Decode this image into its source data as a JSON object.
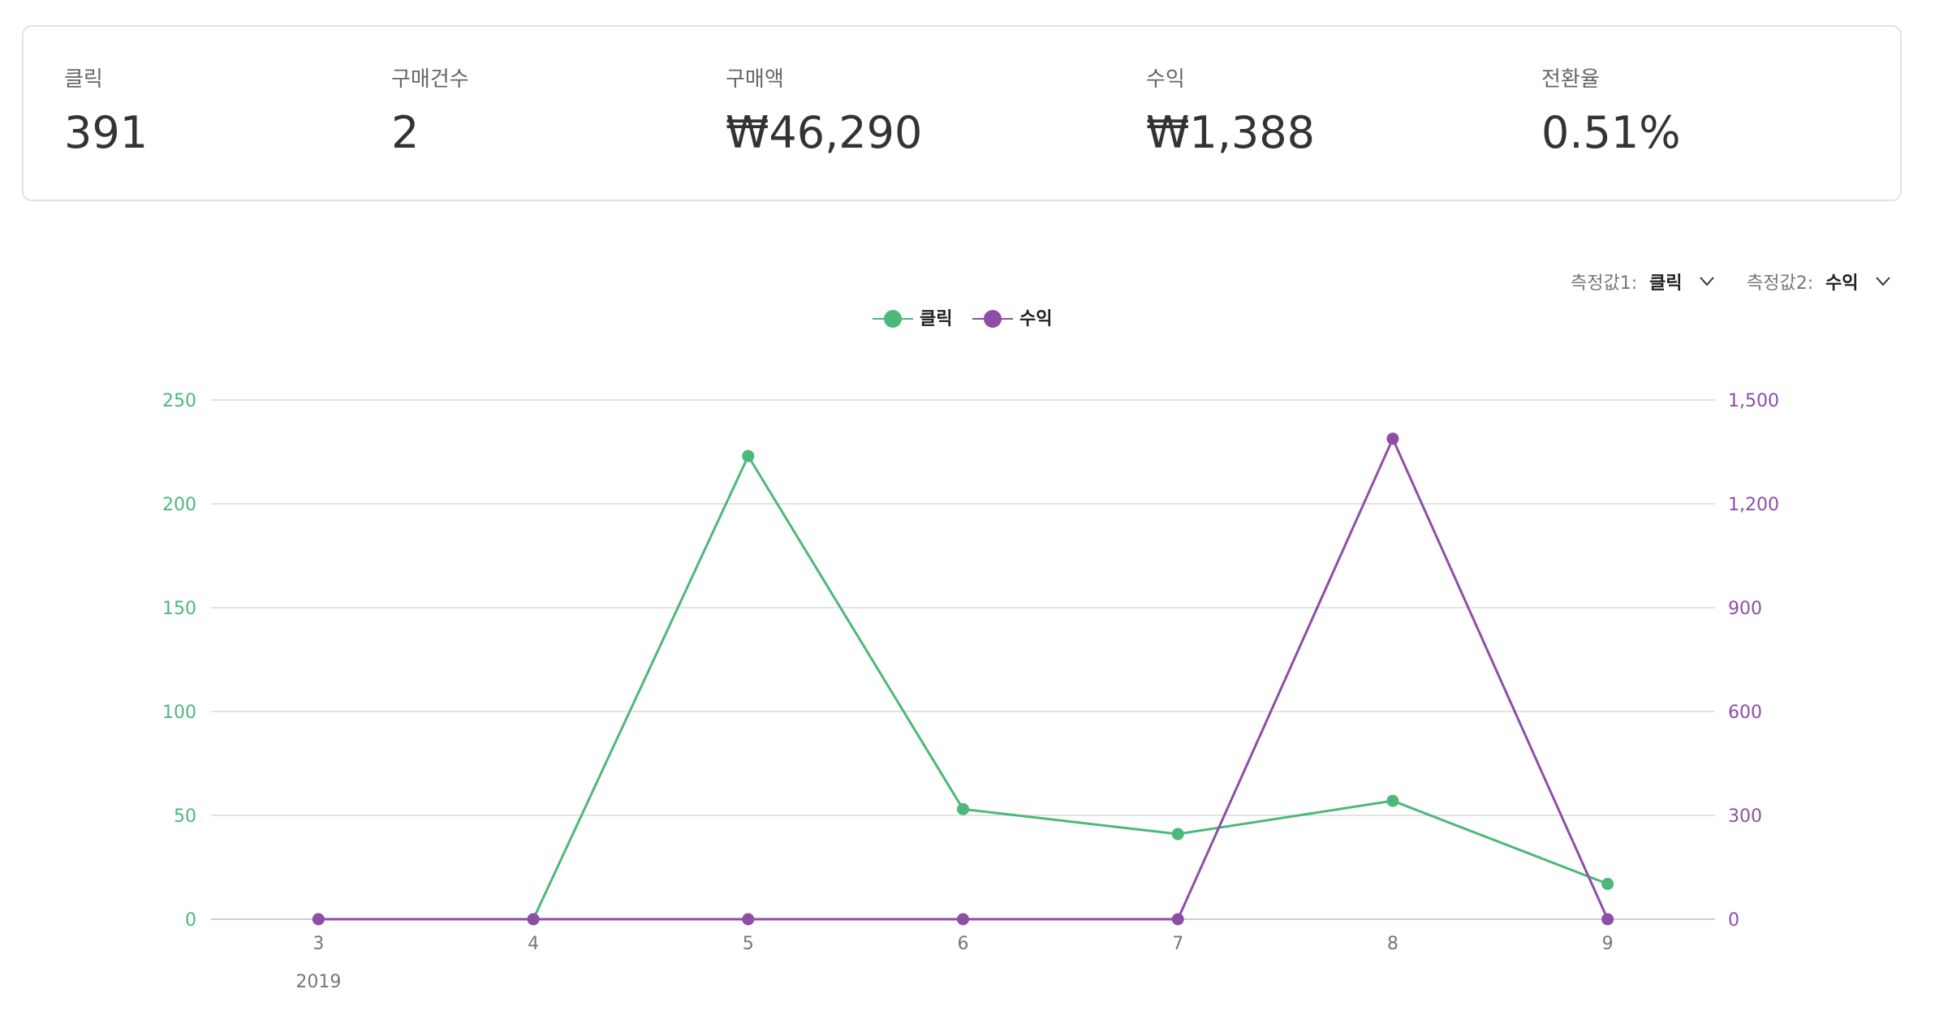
{
  "summary": [
    {
      "label": "클릭",
      "value": "391"
    },
    {
      "label": "구매건수",
      "value": "2"
    },
    {
      "label": "구매액",
      "value": "₩46,290"
    },
    {
      "label": "수익",
      "value": "₩1,388"
    },
    {
      "label": "전환율",
      "value": "0.51%"
    }
  ],
  "controls": [
    {
      "label": "측정값1:",
      "value": "클릭"
    },
    {
      "label": "측정값2:",
      "value": "수익"
    }
  ],
  "chart_data": {
    "type": "line",
    "categories": [
      "3",
      "4",
      "5",
      "6",
      "7",
      "8",
      "9"
    ],
    "year_label": "2019",
    "series": [
      {
        "name": "클릭",
        "color": "#4cb87a",
        "values": [
          0,
          0,
          223,
          53,
          41,
          57,
          17
        ]
      },
      {
        "name": "수익",
        "color": "#8e4ea6",
        "axis": "y2",
        "values": [
          0,
          0,
          0,
          0,
          0,
          1388,
          0
        ]
      }
    ],
    "ylim": [
      0,
      250
    ],
    "yticks": [
      0,
      50,
      100,
      150,
      200,
      250
    ],
    "y2lim": [
      0,
      1500
    ],
    "y2ticks": [
      0,
      300,
      600,
      900,
      {
        "value": 1200,
        "label": "1,200"
      },
      {
        "value": 1500,
        "label": "1,500"
      }
    ],
    "grid": true
  }
}
